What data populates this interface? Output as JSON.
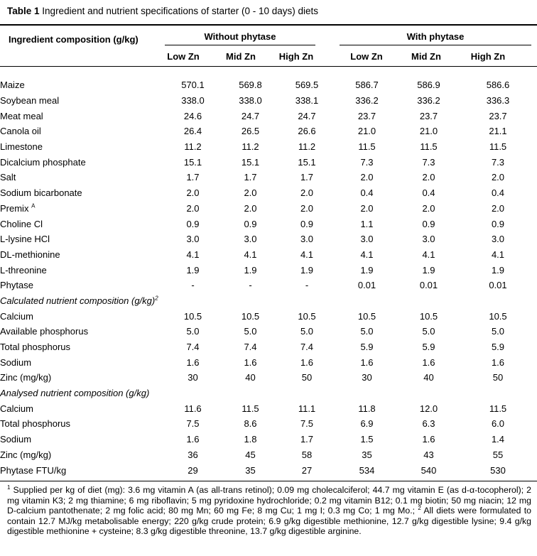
{
  "caption": {
    "label": "Table 1",
    "text": "Ingredient and nutrient specifications of starter (0 - 10 days) diets"
  },
  "header": {
    "row_label": "Ingredient composition (g/kg)",
    "groups": [
      "Without phytase",
      "With phytase"
    ],
    "columns": [
      "Low Zn",
      "Mid Zn",
      "High Zn",
      "Low Zn",
      "Mid Zn",
      "High Zn"
    ]
  },
  "rows": [
    {
      "label": "Maize",
      "values": [
        "570.1",
        "569.8",
        "569.5",
        "586.7",
        "586.9",
        "586.6"
      ]
    },
    {
      "label": "Soybean meal",
      "values": [
        "338.0",
        "338.0",
        "338.1",
        "336.2",
        "336.2",
        "336.3"
      ]
    },
    {
      "label": "Meat meal",
      "values": [
        "24.6",
        "24.7",
        "24.7",
        "23.7",
        "23.7",
        "23.7"
      ]
    },
    {
      "label": "Canola oil",
      "values": [
        "26.4",
        "26.5",
        "26.6",
        "21.0",
        "21.0",
        "21.1"
      ]
    },
    {
      "label": "Limestone",
      "values": [
        "11.2",
        "11.2",
        "11.2",
        "11.5",
        "11.5",
        "11.5"
      ]
    },
    {
      "label": "Dicalcium phosphate",
      "values": [
        "15.1",
        "15.1",
        "15.1",
        "7.3",
        "7.3",
        "7.3"
      ]
    },
    {
      "label": "Salt",
      "values": [
        "1.7",
        "1.7",
        "1.7",
        "2.0",
        "2.0",
        "2.0"
      ]
    },
    {
      "label": "Sodium bicarbonate",
      "values": [
        "2.0",
        "2.0",
        "2.0",
        "0.4",
        "0.4",
        "0.4"
      ]
    },
    {
      "label": "Premix",
      "sup": "A",
      "values": [
        "2.0",
        "2.0",
        "2.0",
        "2.0",
        "2.0",
        "2.0"
      ]
    },
    {
      "label": "Choline Cl",
      "values": [
        "0.9",
        "0.9",
        "0.9",
        "1.1",
        "0.9",
        "0.9"
      ]
    },
    {
      "label": "L-lysine HCl",
      "values": [
        "3.0",
        "3.0",
        "3.0",
        "3.0",
        "3.0",
        "3.0"
      ]
    },
    {
      "label": "DL-methionine",
      "values": [
        "4.1",
        "4.1",
        "4.1",
        "4.1",
        "4.1",
        "4.1"
      ]
    },
    {
      "label": "L-threonine",
      "values": [
        "1.9",
        "1.9",
        "1.9",
        "1.9",
        "1.9",
        "1.9"
      ]
    },
    {
      "label": "Phytase",
      "values": [
        "-",
        "-",
        "-",
        "0.01",
        "0.01",
        "0.01"
      ]
    },
    {
      "section": "Calculated nutrient composition (g/kg)",
      "sup": "2"
    },
    {
      "label": "Calcium",
      "values": [
        "10.5",
        "10.5",
        "10.5",
        "10.5",
        "10.5",
        "10.5"
      ]
    },
    {
      "label": "Available phosphorus",
      "values": [
        "5.0",
        "5.0",
        "5.0",
        "5.0",
        "5.0",
        "5.0"
      ]
    },
    {
      "label": "Total phosphorus",
      "values": [
        "7.4",
        "7.4",
        "7.4",
        "5.9",
        "5.9",
        "5.9"
      ]
    },
    {
      "label": "Sodium",
      "values": [
        "1.6",
        "1.6",
        "1.6",
        "1.6",
        "1.6",
        "1.6"
      ]
    },
    {
      "label": "Zinc (mg/kg)",
      "values": [
        "30",
        "40",
        "50",
        "30",
        "40",
        "50"
      ]
    },
    {
      "section": "Analysed nutrient composition (g/kg)"
    },
    {
      "label": "Calcium",
      "values": [
        "11.6",
        "11.5",
        "11.1",
        "11.8",
        "12.0",
        "11.5"
      ]
    },
    {
      "label": "Total phosphorus",
      "values": [
        "7.5",
        "8.6",
        "7.5",
        "6.9",
        "6.3",
        "6.0"
      ]
    },
    {
      "label": "Sodium",
      "values": [
        "1.6",
        "1.8",
        "1.7",
        "1.5",
        "1.6",
        "1.4"
      ]
    },
    {
      "label": "Zinc (mg/kg)",
      "values": [
        "36",
        "45",
        "58",
        "35",
        "43",
        "55"
      ]
    },
    {
      "label": "Phytase FTU/kg",
      "values": [
        "29",
        "35",
        "27",
        "534",
        "540",
        "530"
      ]
    }
  ],
  "footnotes": {
    "note1_mark": "1",
    "note1_text": "Supplied per kg of diet (mg): 3.6 mg vitamin A (as all-trans retinol); 0.09 mg cholecalciferol; 44.7 mg vitamin E (as d-α-tocopherol); 2 mg vitamin K3; 2 mg thiamine; 6 mg riboflavin; 5 mg pyridoxine hydrochloride; 0.2 mg vitamin B12; 0.1 mg biotin; 50 mg niacin; 12 mg D-calcium pantothenate; 2 mg folic acid; 80 mg Mn; 60 mg Fe; 8 mg Cu; 1 mg I; 0.3 mg Co; 1 mg Mo.;",
    "note2_mark": "2",
    "note2_text": "All diets were formulated to contain 12.7 MJ/kg metabolisable energy; 220 g/kg crude protein; 6.9 g/kg digestible methionine, 12.7 g/kg digestible lysine; 9.4 g/kg digestible methionine + cysteine; 8.3 g/kg digestible threonine, 13.7 g/kg digestible arginine."
  }
}
